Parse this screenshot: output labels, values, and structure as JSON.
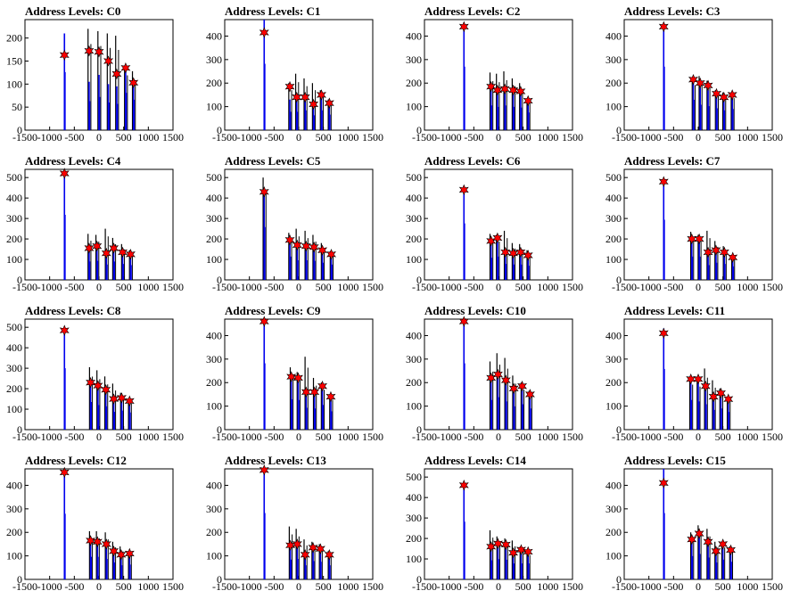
{
  "chart_data": [
    {
      "type": "bar",
      "title": "Address Levels: C0",
      "xlim": [
        -1500,
        1500
      ],
      "ylim": [
        0,
        240
      ],
      "yticks": [
        0,
        50,
        100,
        150,
        200
      ],
      "xticks": [
        -1500,
        -1000,
        -500,
        0,
        500,
        1000,
        1500
      ],
      "peaks": [
        {
          "x": -700,
          "black": 0,
          "blue": 210,
          "star": 163
        },
        {
          "x": -200,
          "black": 220,
          "blue": 105,
          "star": 172
        },
        {
          "x": 0,
          "black": 215,
          "blue": 120,
          "star": 170
        },
        {
          "x": 190,
          "black": 210,
          "blue": 100,
          "star": 150
        },
        {
          "x": 360,
          "black": 205,
          "blue": 95,
          "star": 122
        },
        {
          "x": 540,
          "black": 140,
          "blue": 135,
          "star": 135
        },
        {
          "x": 700,
          "black": 128,
          "blue": 110,
          "star": 103
        }
      ]
    },
    {
      "type": "bar",
      "title": "Address Levels: C1",
      "xlim": [
        -1500,
        1500
      ],
      "ylim": [
        0,
        470
      ],
      "yticks": [
        0,
        100,
        200,
        300,
        400
      ],
      "xticks": [
        -1500,
        -1000,
        -500,
        0,
        500,
        1000,
        1500
      ],
      "peaks": [
        {
          "x": -700,
          "black": 0,
          "blue": 470,
          "star": 415
        },
        {
          "x": -180,
          "black": 200,
          "blue": 130,
          "star": 185
        },
        {
          "x": -40,
          "black": 240,
          "blue": 130,
          "star": 140
        },
        {
          "x": 130,
          "black": 220,
          "blue": 140,
          "star": 140
        },
        {
          "x": 300,
          "black": 200,
          "blue": 105,
          "star": 110
        },
        {
          "x": 460,
          "black": 170,
          "blue": 140,
          "star": 150
        },
        {
          "x": 620,
          "black": 130,
          "blue": 110,
          "star": 115
        }
      ]
    },
    {
      "type": "bar",
      "title": "Address Levels: C2",
      "xlim": [
        -1500,
        1500
      ],
      "ylim": [
        0,
        470
      ],
      "yticks": [
        0,
        100,
        200,
        300,
        400
      ],
      "xticks": [
        -1500,
        -1000,
        -500,
        0,
        500,
        1000,
        1500
      ],
      "peaks": [
        {
          "x": -700,
          "black": 0,
          "blue": 450,
          "star": 440
        },
        {
          "x": -150,
          "black": 245,
          "blue": 175,
          "star": 185
        },
        {
          "x": -20,
          "black": 240,
          "blue": 165,
          "star": 170
        },
        {
          "x": 130,
          "black": 250,
          "blue": 175,
          "star": 175
        },
        {
          "x": 300,
          "black": 220,
          "blue": 165,
          "star": 170
        },
        {
          "x": 450,
          "black": 200,
          "blue": 160,
          "star": 165
        },
        {
          "x": 600,
          "black": 135,
          "blue": 125,
          "star": 125
        }
      ]
    },
    {
      "type": "bar",
      "title": "Address Levels: C3",
      "xlim": [
        -1500,
        1500
      ],
      "ylim": [
        0,
        470
      ],
      "yticks": [
        0,
        100,
        200,
        300,
        400
      ],
      "xticks": [
        -1500,
        -1000,
        -500,
        0,
        500,
        1000,
        1500
      ],
      "peaks": [
        {
          "x": -700,
          "black": 0,
          "blue": 450,
          "star": 440
        },
        {
          "x": -100,
          "black": 225,
          "blue": 215,
          "star": 215
        },
        {
          "x": 40,
          "black": 230,
          "blue": 180,
          "star": 200
        },
        {
          "x": 200,
          "black": 210,
          "blue": 170,
          "star": 190
        },
        {
          "x": 370,
          "black": 170,
          "blue": 155,
          "star": 155
        },
        {
          "x": 520,
          "black": 160,
          "blue": 140,
          "star": 140
        },
        {
          "x": 690,
          "black": 160,
          "blue": 150,
          "star": 150
        }
      ]
    },
    {
      "type": "bar",
      "title": "Address Levels: C4",
      "xlim": [
        -1500,
        1500
      ],
      "ylim": [
        0,
        540
      ],
      "yticks": [
        0,
        100,
        200,
        300,
        400,
        500
      ],
      "xticks": [
        -1500,
        -1000,
        -500,
        0,
        500,
        1000,
        1500
      ],
      "peaks": [
        {
          "x": -700,
          "black": 0,
          "blue": 530,
          "star": 520
        },
        {
          "x": -200,
          "black": 225,
          "blue": 150,
          "star": 155
        },
        {
          "x": -40,
          "black": 220,
          "blue": 155,
          "star": 165
        },
        {
          "x": 150,
          "black": 250,
          "blue": 125,
          "star": 130
        },
        {
          "x": 300,
          "black": 205,
          "blue": 150,
          "star": 155
        },
        {
          "x": 480,
          "black": 175,
          "blue": 130,
          "star": 135
        },
        {
          "x": 640,
          "black": 145,
          "blue": 120,
          "star": 125
        }
      ]
    },
    {
      "type": "bar",
      "title": "Address Levels: C5",
      "xlim": [
        -1500,
        1500
      ],
      "ylim": [
        0,
        540
      ],
      "yticks": [
        0,
        100,
        200,
        300,
        400,
        500
      ],
      "xticks": [
        -1500,
        -1000,
        -500,
        0,
        500,
        1000,
        1500
      ],
      "peaks": [
        {
          "x": -700,
          "black": 500,
          "blue": 430,
          "star": 430
        },
        {
          "x": -180,
          "black": 230,
          "blue": 190,
          "star": 195
        },
        {
          "x": -30,
          "black": 250,
          "blue": 160,
          "star": 170
        },
        {
          "x": 150,
          "black": 240,
          "blue": 160,
          "star": 165
        },
        {
          "x": 310,
          "black": 220,
          "blue": 155,
          "star": 160
        },
        {
          "x": 480,
          "black": 180,
          "blue": 140,
          "star": 145
        },
        {
          "x": 660,
          "black": 140,
          "blue": 125,
          "star": 125
        }
      ]
    },
    {
      "type": "bar",
      "title": "Address Levels: C6",
      "xlim": [
        -1500,
        1500
      ],
      "ylim": [
        0,
        540
      ],
      "yticks": [
        0,
        100,
        200,
        300,
        400,
        500
      ],
      "xticks": [
        -1500,
        -1000,
        -500,
        0,
        500,
        1000,
        1500
      ],
      "peaks": [
        {
          "x": -700,
          "black": 0,
          "blue": 460,
          "star": 440
        },
        {
          "x": -150,
          "black": 225,
          "blue": 180,
          "star": 190
        },
        {
          "x": -20,
          "black": 220,
          "blue": 190,
          "star": 205
        },
        {
          "x": 140,
          "black": 240,
          "blue": 130,
          "star": 135
        },
        {
          "x": 300,
          "black": 180,
          "blue": 125,
          "star": 130
        },
        {
          "x": 450,
          "black": 175,
          "blue": 125,
          "star": 135
        },
        {
          "x": 600,
          "black": 145,
          "blue": 115,
          "star": 120
        }
      ]
    },
    {
      "type": "bar",
      "title": "Address Levels: C7",
      "xlim": [
        -1500,
        1500
      ],
      "ylim": [
        0,
        540
      ],
      "yticks": [
        0,
        100,
        200,
        300,
        400,
        500
      ],
      "xticks": [
        -1500,
        -1000,
        -500,
        0,
        500,
        1000,
        1500
      ],
      "peaks": [
        {
          "x": -700,
          "black": 0,
          "blue": 490,
          "star": 480
        },
        {
          "x": -130,
          "black": 235,
          "blue": 190,
          "star": 200
        },
        {
          "x": 20,
          "black": 220,
          "blue": 190,
          "star": 200
        },
        {
          "x": 200,
          "black": 240,
          "blue": 120,
          "star": 135
        },
        {
          "x": 360,
          "black": 190,
          "blue": 140,
          "star": 145
        },
        {
          "x": 530,
          "black": 165,
          "blue": 130,
          "star": 135
        },
        {
          "x": 700,
          "black": 120,
          "blue": 110,
          "star": 110
        }
      ]
    },
    {
      "type": "bar",
      "title": "Address Levels: C8",
      "xlim": [
        -1500,
        1500
      ],
      "ylim": [
        0,
        540
      ],
      "yticks": [
        0,
        100,
        200,
        300,
        400,
        500
      ],
      "xticks": [
        -1500,
        -1000,
        -500,
        0,
        500,
        1000,
        1500
      ],
      "peaks": [
        {
          "x": -700,
          "black": 0,
          "blue": 500,
          "star": 485
        },
        {
          "x": -170,
          "black": 305,
          "blue": 225,
          "star": 230
        },
        {
          "x": -20,
          "black": 290,
          "blue": 200,
          "star": 215
        },
        {
          "x": 140,
          "black": 260,
          "blue": 190,
          "star": 195
        },
        {
          "x": 300,
          "black": 225,
          "blue": 145,
          "star": 150
        },
        {
          "x": 460,
          "black": 180,
          "blue": 155,
          "star": 155
        },
        {
          "x": 620,
          "black": 150,
          "blue": 140,
          "star": 140
        }
      ]
    },
    {
      "type": "bar",
      "title": "Address Levels: C9",
      "xlim": [
        -1500,
        1500
      ],
      "ylim": [
        0,
        470
      ],
      "yticks": [
        0,
        100,
        200,
        300,
        400
      ],
      "xticks": [
        -1500,
        -1000,
        -500,
        0,
        500,
        1000,
        1500
      ],
      "peaks": [
        {
          "x": -700,
          "black": 0,
          "blue": 470,
          "star": 460
        },
        {
          "x": -150,
          "black": 265,
          "blue": 215,
          "star": 225
        },
        {
          "x": -10,
          "black": 245,
          "blue": 210,
          "star": 220
        },
        {
          "x": 150,
          "black": 310,
          "blue": 155,
          "star": 160
        },
        {
          "x": 320,
          "black": 220,
          "blue": 150,
          "star": 160
        },
        {
          "x": 480,
          "black": 200,
          "blue": 175,
          "star": 185
        },
        {
          "x": 650,
          "black": 150,
          "blue": 130,
          "star": 140
        }
      ]
    },
    {
      "type": "bar",
      "title": "Address Levels: C10",
      "xlim": [
        -1500,
        1500
      ],
      "ylim": [
        0,
        470
      ],
      "yticks": [
        0,
        100,
        200,
        300,
        400
      ],
      "xticks": [
        -1500,
        -1000,
        -500,
        0,
        500,
        1000,
        1500
      ],
      "peaks": [
        {
          "x": -700,
          "black": 0,
          "blue": 470,
          "star": 460
        },
        {
          "x": -150,
          "black": 290,
          "blue": 210,
          "star": 220
        },
        {
          "x": -10,
          "black": 325,
          "blue": 230,
          "star": 235
        },
        {
          "x": 150,
          "black": 305,
          "blue": 200,
          "star": 210
        },
        {
          "x": 310,
          "black": 230,
          "blue": 165,
          "star": 175
        },
        {
          "x": 480,
          "black": 200,
          "blue": 180,
          "star": 185
        },
        {
          "x": 640,
          "black": 165,
          "blue": 150,
          "star": 150
        }
      ]
    },
    {
      "type": "bar",
      "title": "Address Levels: C11",
      "xlim": [
        -1500,
        1500
      ],
      "ylim": [
        0,
        470
      ],
      "yticks": [
        0,
        100,
        200,
        300,
        400
      ],
      "xticks": [
        -1500,
        -1000,
        -500,
        0,
        500,
        1000,
        1500
      ],
      "peaks": [
        {
          "x": -700,
          "black": 0,
          "blue": 430,
          "star": 410
        },
        {
          "x": -150,
          "black": 225,
          "blue": 210,
          "star": 215
        },
        {
          "x": 0,
          "black": 215,
          "blue": 200,
          "star": 215
        },
        {
          "x": 150,
          "black": 260,
          "blue": 180,
          "star": 185
        },
        {
          "x": 310,
          "black": 210,
          "blue": 140,
          "star": 140
        },
        {
          "x": 460,
          "black": 175,
          "blue": 150,
          "star": 155
        },
        {
          "x": 610,
          "black": 140,
          "blue": 125,
          "star": 130
        }
      ]
    },
    {
      "type": "bar",
      "title": "Address Levels: C12",
      "xlim": [
        -1500,
        1500
      ],
      "ylim": [
        0,
        470
      ],
      "yticks": [
        0,
        100,
        200,
        300,
        400
      ],
      "xticks": [
        -1500,
        -1000,
        -500,
        0,
        500,
        1000,
        1500
      ],
      "peaks": [
        {
          "x": -700,
          "black": 0,
          "blue": 465,
          "star": 455
        },
        {
          "x": -170,
          "black": 205,
          "blue": 160,
          "star": 165
        },
        {
          "x": -30,
          "black": 205,
          "blue": 160,
          "star": 160
        },
        {
          "x": 150,
          "black": 200,
          "blue": 145,
          "star": 150
        },
        {
          "x": 300,
          "black": 160,
          "blue": 120,
          "star": 120
        },
        {
          "x": 450,
          "black": 140,
          "blue": 100,
          "star": 105
        },
        {
          "x": 620,
          "black": 120,
          "blue": 105,
          "star": 110
        }
      ]
    },
    {
      "type": "bar",
      "title": "Address Levels: C13",
      "xlim": [
        -1500,
        1500
      ],
      "ylim": [
        0,
        470
      ],
      "yticks": [
        0,
        100,
        200,
        300,
        400
      ],
      "xticks": [
        -1500,
        -1000,
        -500,
        0,
        500,
        1000,
        1500
      ],
      "peaks": [
        {
          "x": -700,
          "black": 0,
          "blue": 470,
          "star": 465
        },
        {
          "x": -170,
          "black": 225,
          "blue": 140,
          "star": 145
        },
        {
          "x": -30,
          "black": 215,
          "blue": 145,
          "star": 150
        },
        {
          "x": 130,
          "black": 170,
          "blue": 100,
          "star": 105
        },
        {
          "x": 290,
          "black": 160,
          "blue": 130,
          "star": 135
        },
        {
          "x": 440,
          "black": 150,
          "blue": 125,
          "star": 130
        },
        {
          "x": 620,
          "black": 120,
          "blue": 100,
          "star": 105
        }
      ]
    },
    {
      "type": "bar",
      "title": "Address Levels: C14",
      "xlim": [
        -1500,
        1500
      ],
      "ylim": [
        0,
        540
      ],
      "yticks": [
        0,
        100,
        200,
        300,
        400,
        500
      ],
      "xticks": [
        -1500,
        -1000,
        -500,
        0,
        500,
        1000,
        1500
      ],
      "peaks": [
        {
          "x": -700,
          "black": 0,
          "blue": 470,
          "star": 460
        },
        {
          "x": -150,
          "black": 240,
          "blue": 155,
          "star": 160
        },
        {
          "x": -10,
          "black": 210,
          "blue": 165,
          "star": 175
        },
        {
          "x": 150,
          "black": 200,
          "blue": 160,
          "star": 170
        },
        {
          "x": 300,
          "black": 190,
          "blue": 130,
          "star": 130
        },
        {
          "x": 460,
          "black": 160,
          "blue": 130,
          "star": 145
        },
        {
          "x": 600,
          "black": 140,
          "blue": 130,
          "star": 135
        }
      ]
    },
    {
      "type": "bar",
      "title": "Address Levels: C15",
      "xlim": [
        -1500,
        1500
      ],
      "ylim": [
        0,
        470
      ],
      "yticks": [
        0,
        100,
        200,
        300,
        400
      ],
      "xticks": [
        -1500,
        -1000,
        -500,
        0,
        500,
        1000,
        1500
      ],
      "peaks": [
        {
          "x": -700,
          "black": 0,
          "blue": 470,
          "star": 410
        },
        {
          "x": -130,
          "black": 200,
          "blue": 165,
          "star": 170
        },
        {
          "x": 20,
          "black": 230,
          "blue": 180,
          "star": 195
        },
        {
          "x": 200,
          "black": 215,
          "blue": 155,
          "star": 160
        },
        {
          "x": 360,
          "black": 160,
          "blue": 120,
          "star": 120
        },
        {
          "x": 500,
          "black": 160,
          "blue": 140,
          "star": 150
        },
        {
          "x": 660,
          "black": 140,
          "blue": 125,
          "star": 125
        }
      ]
    }
  ],
  "colors": {
    "black_series": "#000000",
    "blue_series": "#0000ee",
    "star": "#ff0000",
    "axis": "#000000"
  }
}
